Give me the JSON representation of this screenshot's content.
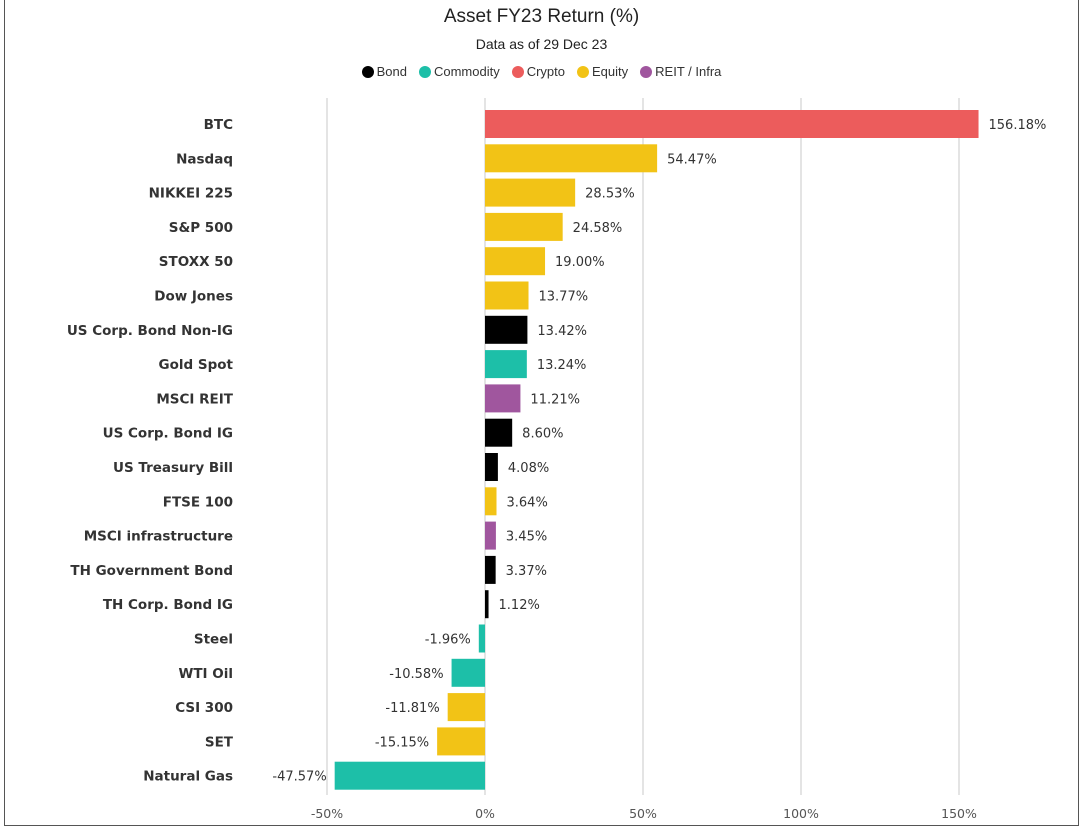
{
  "chart_data": {
    "type": "bar",
    "orientation": "horizontal",
    "title": "Asset FY23 Return (%)",
    "subtitle": "Data as of 29 Dec 23",
    "xlim": [
      -50,
      160
    ],
    "xticks": [
      -50,
      0,
      50,
      100,
      150
    ],
    "xtick_labels": [
      "-50%",
      "0%",
      "50%",
      "100%",
      "150%"
    ],
    "grid": "vertical",
    "legend": {
      "position": "top-center",
      "entries": [
        {
          "name": "Bond",
          "color": "#000000"
        },
        {
          "name": "Commodity",
          "color": "#1dbfa8"
        },
        {
          "name": "Crypto",
          "color": "#ec5c5c"
        },
        {
          "name": "Equity",
          "color": "#f2c316"
        },
        {
          "name": "REIT / Infra",
          "color": "#a0569e"
        }
      ]
    },
    "bars": [
      {
        "label": "BTC",
        "value": 156.18,
        "value_label": "156.18%",
        "group": "Crypto"
      },
      {
        "label": "Nasdaq",
        "value": 54.47,
        "value_label": "54.47%",
        "group": "Equity"
      },
      {
        "label": "NIKKEI 225",
        "value": 28.53,
        "value_label": "28.53%",
        "group": "Equity"
      },
      {
        "label": "S&P 500",
        "value": 24.58,
        "value_label": "24.58%",
        "group": "Equity"
      },
      {
        "label": "STOXX 50",
        "value": 19.0,
        "value_label": "19.00%",
        "group": "Equity"
      },
      {
        "label": "Dow Jones",
        "value": 13.77,
        "value_label": "13.77%",
        "group": "Equity"
      },
      {
        "label": "US Corp. Bond Non-IG",
        "value": 13.42,
        "value_label": "13.42%",
        "group": "Bond"
      },
      {
        "label": "Gold Spot",
        "value": 13.24,
        "value_label": "13.24%",
        "group": "Commodity"
      },
      {
        "label": "MSCI REIT",
        "value": 11.21,
        "value_label": "11.21%",
        "group": "REIT / Infra"
      },
      {
        "label": "US Corp. Bond IG",
        "value": 8.6,
        "value_label": "8.60%",
        "group": "Bond"
      },
      {
        "label": "US Treasury Bill",
        "value": 4.08,
        "value_label": "4.08%",
        "group": "Bond"
      },
      {
        "label": "FTSE 100",
        "value": 3.64,
        "value_label": "3.64%",
        "group": "Equity"
      },
      {
        "label": "MSCI infrastructure",
        "value": 3.45,
        "value_label": "3.45%",
        "group": "REIT / Infra"
      },
      {
        "label": "TH Government Bond",
        "value": 3.37,
        "value_label": "3.37%",
        "group": "Bond"
      },
      {
        "label": "TH Corp. Bond IG",
        "value": 1.12,
        "value_label": "1.12%",
        "group": "Bond"
      },
      {
        "label": "Steel",
        "value": -1.96,
        "value_label": "-1.96%",
        "group": "Commodity"
      },
      {
        "label": "WTI Oil",
        "value": -10.58,
        "value_label": "-10.58%",
        "group": "Commodity"
      },
      {
        "label": "CSI 300",
        "value": -11.81,
        "value_label": "-11.81%",
        "group": "Equity"
      },
      {
        "label": "SET",
        "value": -15.15,
        "value_label": "-15.15%",
        "group": "Equity"
      },
      {
        "label": "Natural Gas",
        "value": -47.57,
        "value_label": "-47.57%",
        "group": "Commodity"
      }
    ]
  }
}
